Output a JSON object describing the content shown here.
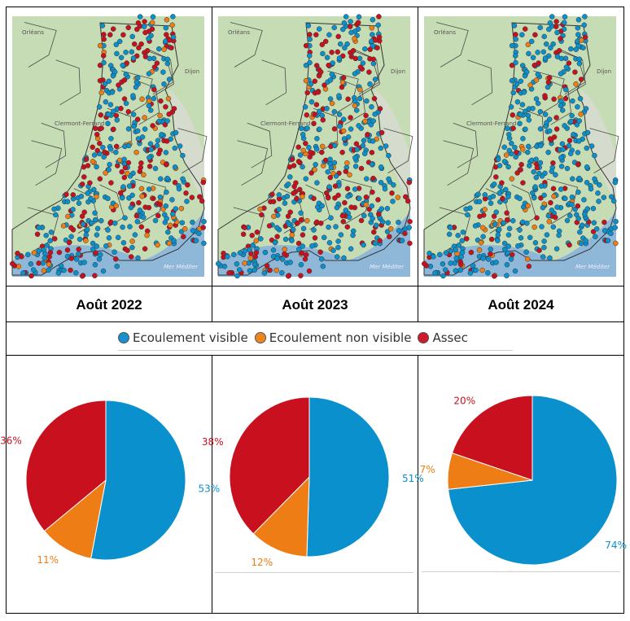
{
  "headers": [
    "Août 2022",
    "Août 2023",
    "Août 2024"
  ],
  "map_labels": {
    "sea": "Mer Méditer",
    "city_nw": "Orléans",
    "city_ne": "Dijon",
    "city_mid": "Clermont-Ferrand"
  },
  "legend": [
    {
      "label": "Ecoulement visible",
      "color": "#1a8fd0"
    },
    {
      "label": "Ecoulement non visible",
      "color": "#f0841c"
    },
    {
      "label": "Assec",
      "color": "#cc1b2a"
    }
  ],
  "colors": {
    "visible": "#0a90cc",
    "nonvisible": "#ee7d16",
    "assec": "#c8101e"
  },
  "chart_data": [
    {
      "type": "pie",
      "title": "Août 2022",
      "slices": [
        {
          "name": "Ecoulement visible",
          "value": 53,
          "label": "53%"
        },
        {
          "name": "Ecoulement non visible",
          "value": 11,
          "label": "11%"
        },
        {
          "name": "Assec",
          "value": 36,
          "label": "36%"
        }
      ]
    },
    {
      "type": "pie",
      "title": "Août 2023",
      "slices": [
        {
          "name": "Ecoulement visible",
          "value": 51,
          "label": "51%"
        },
        {
          "name": "Ecoulement non visible",
          "value": 12,
          "label": "12%"
        },
        {
          "name": "Assec",
          "value": 38,
          "label": "38%"
        }
      ]
    },
    {
      "type": "pie",
      "title": "Août 2024",
      "slices": [
        {
          "name": "Ecoulement visible",
          "value": 74,
          "label": "74%"
        },
        {
          "name": "Ecoulement non visible",
          "value": 7,
          "label": "7%"
        },
        {
          "name": "Assec",
          "value": 20,
          "label": "20%"
        }
      ]
    }
  ]
}
